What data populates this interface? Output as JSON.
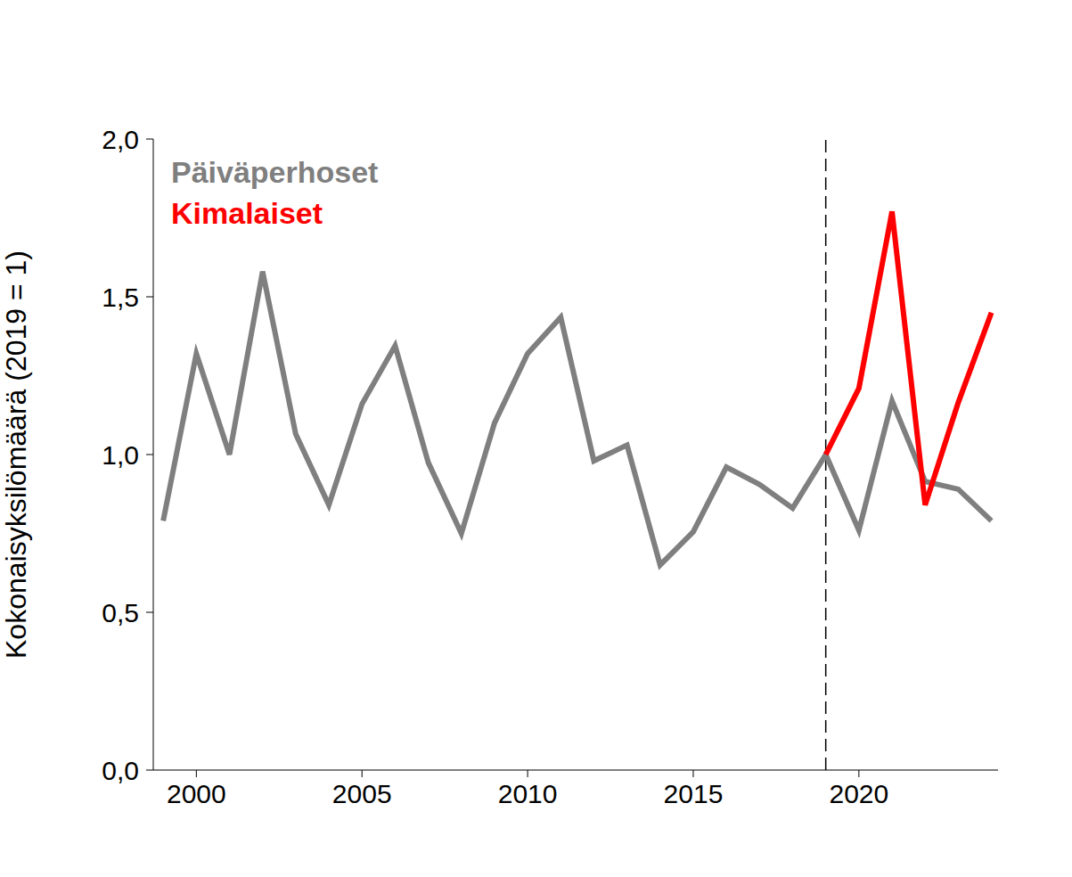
{
  "chart_data": {
    "type": "line",
    "y_label": "Kokonaisyksilömäärä (2019 = 1)",
    "x": [
      1999,
      2000,
      2001,
      2002,
      2003,
      2004,
      2005,
      2006,
      2007,
      2008,
      2009,
      2010,
      2011,
      2012,
      2013,
      2014,
      2015,
      2016,
      2017,
      2018,
      2019,
      2020,
      2021,
      2022,
      2023,
      2024
    ],
    "series": [
      {
        "name": "Päiväperhoset",
        "color": "#7f7f7f",
        "values": [
          0.79,
          1.32,
          1.0,
          1.58,
          1.065,
          0.84,
          1.16,
          1.345,
          0.975,
          0.75,
          1.1,
          1.32,
          1.435,
          0.98,
          1.03,
          0.65,
          0.755,
          0.96,
          0.905,
          0.83,
          1.0,
          0.76,
          1.17,
          0.915,
          0.89,
          0.79
        ]
      },
      {
        "name": "Kimalaiset",
        "color": "#ff0000",
        "values": [
          null,
          null,
          null,
          null,
          null,
          null,
          null,
          null,
          null,
          null,
          null,
          null,
          null,
          null,
          null,
          null,
          null,
          null,
          null,
          null,
          1.0,
          1.21,
          1.77,
          0.84,
          1.165,
          1.45
        ]
      }
    ],
    "xlim": [
      1998.7,
      2024.2
    ],
    "xticks": [
      2000,
      2005,
      2010,
      2015,
      2020
    ],
    "ylim": [
      0,
      2
    ],
    "yticks": [
      {
        "value": 0,
        "label": "0,0"
      },
      {
        "value": 0.5,
        "label": "0,5"
      },
      {
        "value": 1,
        "label": "1,0"
      },
      {
        "value": 1.5,
        "label": "1,5"
      },
      {
        "value": 2,
        "label": "2,0"
      }
    ],
    "vline_x": 2019,
    "legend": "top-left",
    "grid": false
  }
}
